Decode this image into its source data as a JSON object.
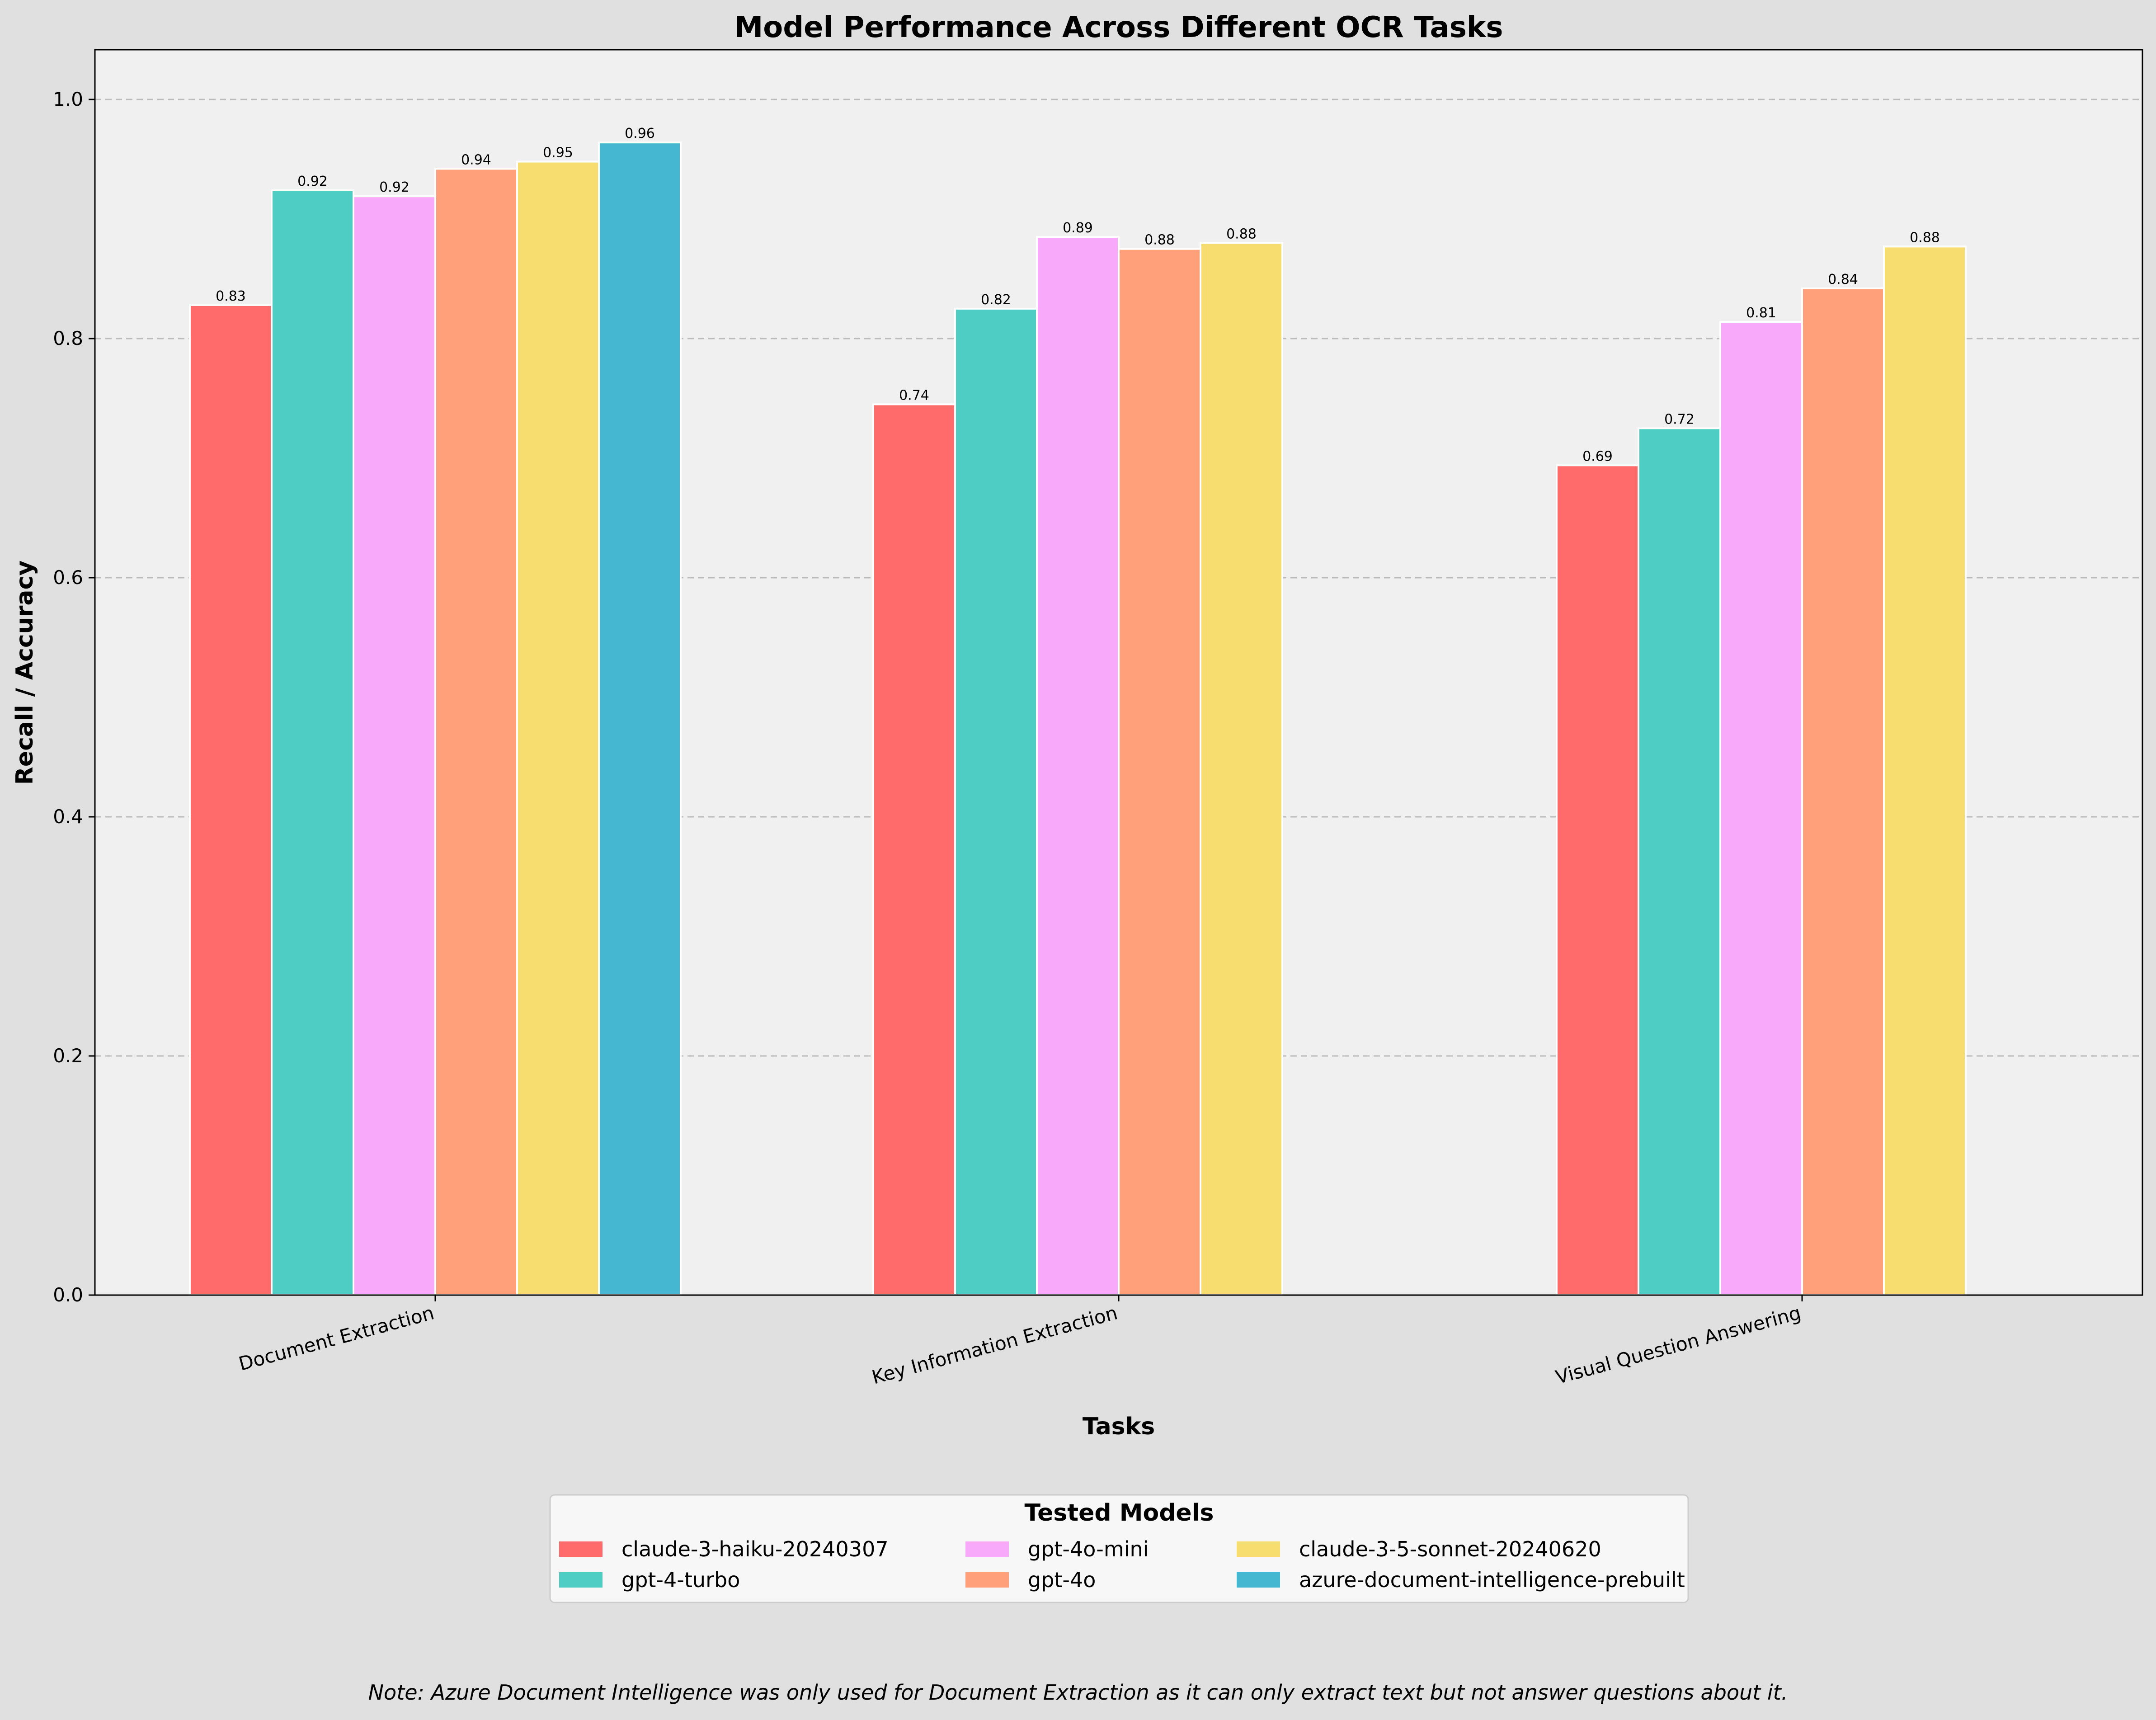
{
  "chart_data": {
    "type": "bar",
    "title": "Model Performance Across Different OCR Tasks",
    "xlabel": "Tasks",
    "ylabel": "Recall / Accuracy",
    "ylim": [
      0,
      1.0
    ],
    "yticks": [
      0.0,
      0.2,
      0.4,
      0.6,
      0.8,
      1.0
    ],
    "grid": "horizontal dashed",
    "categories": [
      "Document Extraction",
      "Key Information Extraction",
      "Visual Question Answering"
    ],
    "legend": {
      "title": "Tested Models",
      "placement": "bottom-center",
      "columns": 3
    },
    "series": [
      {
        "name": "claude-3-haiku-20240307",
        "color": "#ff6b6b",
        "values": [
          0.828,
          0.745,
          0.694
        ],
        "labels": [
          "0.83",
          "0.74",
          "0.69"
        ]
      },
      {
        "name": "gpt-4-turbo",
        "color": "#4ecdc4",
        "values": [
          0.924,
          0.825,
          0.725
        ],
        "labels": [
          "0.92",
          "0.82",
          "0.72"
        ]
      },
      {
        "name": "gpt-4o-mini",
        "color": "#f8a9f9",
        "values": [
          0.919,
          0.885,
          0.814
        ],
        "labels": [
          "0.92",
          "0.89",
          "0.81"
        ]
      },
      {
        "name": "gpt-4o",
        "color": "#ffa07a",
        "values": [
          0.942,
          0.875,
          0.842
        ],
        "labels": [
          "0.94",
          "0.88",
          "0.84"
        ]
      },
      {
        "name": "claude-3-5-sonnet-20240620",
        "color": "#f7dc6f",
        "values": [
          0.948,
          0.88,
          0.877
        ],
        "labels": [
          "0.95",
          "0.88",
          "0.88"
        ]
      },
      {
        "name": "azure-document-intelligence-prebuilt",
        "color": "#45b7d1",
        "values": [
          0.964,
          null,
          null
        ],
        "labels": [
          "0.96",
          null,
          null
        ]
      }
    ],
    "note": "Note: Azure Document Intelligence was only used for Document Extraction as it can only extract text but not answer questions about it."
  }
}
